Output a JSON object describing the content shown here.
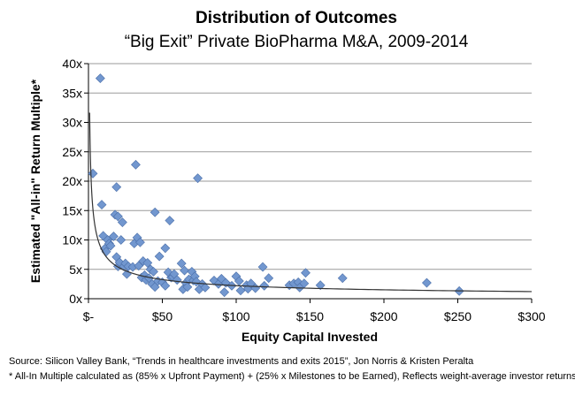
{
  "chart_data": {
    "type": "scatter",
    "title": "Distribution of Outcomes",
    "subtitle": "“Big Exit” Private BioPharma M&A, 2009-2014",
    "xlabel": "Equity Capital Invested",
    "ylabel": "Estimated \"All-in\" Return Multiple*",
    "xlim": [
      0,
      300
    ],
    "ylim": [
      0,
      40
    ],
    "x_ticks": [
      {
        "value": 0,
        "label": "$-"
      },
      {
        "value": 50,
        "label": "$50"
      },
      {
        "value": 100,
        "label": "$100"
      },
      {
        "value": 150,
        "label": "$150"
      },
      {
        "value": 200,
        "label": "$200"
      },
      {
        "value": 250,
        "label": "$250"
      },
      {
        "value": 300,
        "label": "$300"
      }
    ],
    "y_ticks": [
      {
        "value": 0,
        "label": "0x"
      },
      {
        "value": 5,
        "label": "5x"
      },
      {
        "value": 10,
        "label": "10x"
      },
      {
        "value": 15,
        "label": "15x"
      },
      {
        "value": 20,
        "label": "20x"
      },
      {
        "value": 25,
        "label": "25x"
      },
      {
        "value": 30,
        "label": "30x"
      },
      {
        "value": 35,
        "label": "35x"
      },
      {
        "value": 40,
        "label": "40x"
      }
    ],
    "grid": "horizontal",
    "marker": {
      "shape": "diamond",
      "color": "#7297cf",
      "edge": "#4a6ea8"
    },
    "trendline": {
      "type": "power",
      "coefficient": 28,
      "exponent": -0.55,
      "x_range": [
        0.8,
        300
      ],
      "color": "#333333"
    },
    "series": [
      {
        "points": [
          [
            3,
            21.3
          ],
          [
            8,
            37.5
          ],
          [
            9,
            16
          ],
          [
            10,
            10.7
          ],
          [
            11,
            8.5
          ],
          [
            12,
            8
          ],
          [
            13,
            10
          ],
          [
            14,
            9.4
          ],
          [
            15,
            9
          ],
          [
            17,
            10.6
          ],
          [
            18,
            14.3
          ],
          [
            19,
            19
          ],
          [
            19,
            7.1
          ],
          [
            20,
            14
          ],
          [
            20,
            5.5
          ],
          [
            21,
            6.2
          ],
          [
            22,
            10
          ],
          [
            23,
            13
          ],
          [
            24,
            5.5
          ],
          [
            25,
            6
          ],
          [
            26,
            4.2
          ],
          [
            27,
            5.5
          ],
          [
            30,
            5.4
          ],
          [
            31,
            9.4
          ],
          [
            32,
            22.8
          ],
          [
            33,
            10.4
          ],
          [
            34,
            5.6
          ],
          [
            35,
            9.6
          ],
          [
            36,
            3.6
          ],
          [
            37,
            6.4
          ],
          [
            38,
            4
          ],
          [
            39,
            3.2
          ],
          [
            40,
            6.1
          ],
          [
            41,
            3.5
          ],
          [
            42,
            5
          ],
          [
            43,
            2.5
          ],
          [
            44,
            4.6
          ],
          [
            45,
            14.7
          ],
          [
            45,
            2
          ],
          [
            47,
            3
          ],
          [
            48,
            7.2
          ],
          [
            50,
            2.8
          ],
          [
            52,
            8.6
          ],
          [
            52,
            2.2
          ],
          [
            54,
            4.5
          ],
          [
            55,
            13.3
          ],
          [
            56,
            3.6
          ],
          [
            57,
            3.7
          ],
          [
            58,
            4.2
          ],
          [
            60,
            3.2
          ],
          [
            63,
            6
          ],
          [
            64,
            1.6
          ],
          [
            65,
            4.8
          ],
          [
            66,
            2.7
          ],
          [
            67,
            2
          ],
          [
            68,
            3.3
          ],
          [
            70,
            4.6
          ],
          [
            71,
            3.1
          ],
          [
            72,
            3.8
          ],
          [
            73,
            2.9
          ],
          [
            74,
            20.5
          ],
          [
            75,
            1.6
          ],
          [
            77,
            2.5
          ],
          [
            79,
            1.9
          ],
          [
            85,
            3.1
          ],
          [
            88,
            2.5
          ],
          [
            90,
            3.4
          ],
          [
            92,
            1.1
          ],
          [
            93,
            2.7
          ],
          [
            97,
            2.2
          ],
          [
            100,
            3.8
          ],
          [
            102,
            3
          ],
          [
            103,
            1.4
          ],
          [
            107,
            2.3
          ],
          [
            108,
            1.7
          ],
          [
            110,
            2.6
          ],
          [
            113,
            1.8
          ],
          [
            118,
            5.4
          ],
          [
            119,
            2.2
          ],
          [
            122,
            3.5
          ],
          [
            136,
            2.3
          ],
          [
            139,
            2.6
          ],
          [
            142,
            2.8
          ],
          [
            143,
            1.9
          ],
          [
            146,
            2.6
          ],
          [
            147,
            4.4
          ],
          [
            157,
            2.3
          ],
          [
            172,
            3.5
          ],
          [
            229,
            2.7
          ],
          [
            251,
            1.3
          ]
        ]
      }
    ]
  },
  "footnotes": {
    "source": "Source: Silicon Valley Bank, “Trends in healthcare investments and exits 2015”, Jon Norris & Kristen Peralta",
    "method": "* All-In Multiple calculated as (85% x Upfront Payment) + (25% x Milestones to be Earned), Reflects weight-average investor returns"
  }
}
